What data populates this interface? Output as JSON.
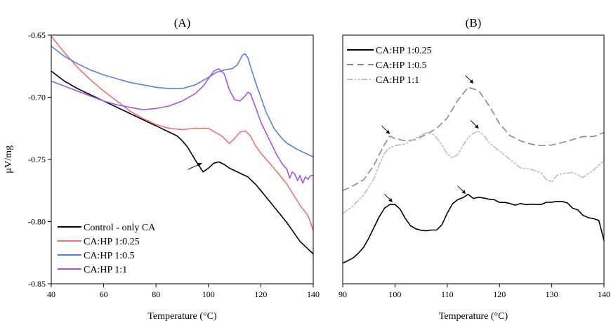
{
  "chart_data": [
    {
      "panel_label": "(A)",
      "type": "line",
      "xlabel": "Temperature (°C)",
      "ylabel": "µV/mg",
      "xlim": [
        40,
        140
      ],
      "ylim": [
        -0.85,
        -0.65
      ],
      "x_ticks": [
        "40",
        "60",
        "80",
        "100",
        "120",
        "140"
      ],
      "y_ticks": [
        "-0.65",
        "-0.70",
        "-0.75",
        "-0.80",
        "-0.85"
      ],
      "legend_position": "bottom-left",
      "series": [
        {
          "name": "Control - only CA",
          "color": "#000000",
          "x": [
            40,
            45,
            50,
            55,
            60,
            65,
            70,
            75,
            80,
            85,
            88,
            90,
            92,
            94,
            96,
            98,
            100,
            102,
            104,
            106,
            108,
            110,
            112,
            115,
            118,
            120,
            125,
            130,
            135,
            138,
            140
          ],
          "y": [
            -0.679,
            -0.687,
            -0.693,
            -0.698,
            -0.703,
            -0.708,
            -0.713,
            -0.718,
            -0.723,
            -0.728,
            -0.731,
            -0.735,
            -0.74,
            -0.747,
            -0.754,
            -0.76,
            -0.757,
            -0.753,
            -0.752,
            -0.754,
            -0.757,
            -0.759,
            -0.761,
            -0.764,
            -0.77,
            -0.775,
            -0.788,
            -0.801,
            -0.816,
            -0.822,
            -0.826
          ]
        },
        {
          "name": "CA:HP 1:0.25",
          "color": "#f07171",
          "x": [
            40,
            45,
            50,
            55,
            60,
            65,
            70,
            75,
            80,
            85,
            90,
            95,
            100,
            105,
            108,
            110,
            112,
            114,
            116,
            118,
            120,
            125,
            130,
            135,
            138,
            140
          ],
          "y": [
            -0.651,
            -0.664,
            -0.676,
            -0.686,
            -0.695,
            -0.703,
            -0.711,
            -0.717,
            -0.722,
            -0.725,
            -0.726,
            -0.725,
            -0.725,
            -0.731,
            -0.737,
            -0.733,
            -0.728,
            -0.727,
            -0.731,
            -0.739,
            -0.745,
            -0.757,
            -0.77,
            -0.787,
            -0.795,
            -0.807
          ]
        },
        {
          "name": "CA:HP 1:0.5",
          "color": "#5b7fe8",
          "x": [
            40,
            45,
            50,
            55,
            60,
            65,
            70,
            75,
            80,
            85,
            90,
            95,
            100,
            103,
            106,
            109,
            111,
            113,
            114,
            115,
            116,
            118,
            120,
            122,
            125,
            128,
            130,
            134,
            138,
            140
          ],
          "y": [
            -0.659,
            -0.667,
            -0.673,
            -0.678,
            -0.682,
            -0.685,
            -0.688,
            -0.69,
            -0.692,
            -0.693,
            -0.693,
            -0.69,
            -0.684,
            -0.68,
            -0.678,
            -0.677,
            -0.674,
            -0.666,
            -0.665,
            -0.668,
            -0.675,
            -0.688,
            -0.7,
            -0.712,
            -0.725,
            -0.733,
            -0.737,
            -0.742,
            -0.746,
            -0.748
          ]
        },
        {
          "name": "CA:HP 1:1",
          "color": "#a855e0",
          "x": [
            40,
            45,
            50,
            55,
            60,
            65,
            70,
            75,
            80,
            85,
            90,
            95,
            98,
            100,
            102,
            104,
            106,
            108,
            110,
            112,
            114,
            115,
            116,
            118,
            120,
            123,
            126,
            128,
            130,
            131,
            132,
            133,
            134,
            135,
            136,
            137,
            138,
            139,
            140
          ],
          "y": [
            -0.687,
            -0.691,
            -0.695,
            -0.699,
            -0.703,
            -0.706,
            -0.708,
            -0.71,
            -0.709,
            -0.707,
            -0.703,
            -0.697,
            -0.691,
            -0.685,
            -0.679,
            -0.677,
            -0.681,
            -0.694,
            -0.702,
            -0.703,
            -0.699,
            -0.696,
            -0.697,
            -0.708,
            -0.72,
            -0.733,
            -0.746,
            -0.753,
            -0.758,
            -0.765,
            -0.76,
            -0.762,
            -0.767,
            -0.763,
            -0.769,
            -0.764,
            -0.766,
            -0.763,
            -0.763
          ]
        }
      ],
      "annotations": [
        {
          "type": "arrow",
          "target_x": 97.5,
          "target_y": -0.753
        }
      ]
    },
    {
      "panel_label": "(B)",
      "type": "line",
      "xlabel": "Temperature (°C)",
      "xlim": [
        90,
        140
      ],
      "x_ticks": [
        "90",
        "100",
        "110",
        "120",
        "130",
        "140"
      ],
      "ylim": [
        0,
        1
      ],
      "y_axis_labelled": false,
      "legend_position": "top-left",
      "series": [
        {
          "name": "CA:HP 1:0.25",
          "color": "#000000",
          "dash": "solid",
          "x": [
            90,
            91,
            92,
            93,
            94,
            95,
            96,
            97,
            98,
            99,
            100,
            101,
            102,
            103,
            104,
            105,
            106,
            107,
            108,
            109,
            110,
            111,
            112,
            113,
            114,
            115,
            116,
            117,
            118,
            119,
            120,
            121,
            122,
            123,
            124,
            125,
            126,
            127,
            128,
            129,
            130,
            131,
            132,
            133,
            134,
            135,
            136,
            137,
            138,
            139,
            140
          ],
          "y": [
            0.083,
            0.093,
            0.104,
            0.123,
            0.147,
            0.184,
            0.227,
            0.27,
            0.304,
            0.319,
            0.319,
            0.3,
            0.262,
            0.233,
            0.221,
            0.215,
            0.213,
            0.216,
            0.216,
            0.238,
            0.284,
            0.321,
            0.338,
            0.346,
            0.36,
            0.343,
            0.348,
            0.345,
            0.34,
            0.338,
            0.327,
            0.327,
            0.323,
            0.316,
            0.323,
            0.318,
            0.32,
            0.319,
            0.319,
            0.328,
            0.328,
            0.331,
            0.331,
            0.325,
            0.304,
            0.297,
            0.275,
            0.266,
            0.262,
            0.255,
            0.175
          ]
        },
        {
          "name": "CA:HP 1:0.5",
          "color": "#8a8a8a",
          "dash": "long-dash",
          "x": [
            90,
            92,
            94,
            96,
            98,
            99,
            100,
            102,
            104,
            106,
            108,
            110,
            112,
            114,
            116,
            118,
            120,
            122,
            124,
            126,
            128,
            130,
            132,
            134,
            136,
            138,
            140
          ],
          "y": [
            0.375,
            0.394,
            0.418,
            0.477,
            0.561,
            0.594,
            0.584,
            0.575,
            0.58,
            0.601,
            0.625,
            0.667,
            0.737,
            0.79,
            0.777,
            0.717,
            0.644,
            0.596,
            0.575,
            0.562,
            0.555,
            0.558,
            0.568,
            0.58,
            0.592,
            0.592,
            0.608
          ]
        },
        {
          "name": "CA:HP 1:1",
          "color": "#bdbdbd",
          "dash": "dash-dot-dot",
          "x": [
            90,
            92,
            94,
            96,
            97,
            98,
            99,
            100,
            102,
            104,
            106,
            107,
            108,
            109,
            110,
            111,
            112,
            113,
            114,
            115,
            116,
            117,
            118,
            120,
            122,
            124,
            126,
            128,
            129,
            130,
            131,
            132,
            133,
            134,
            135,
            136,
            137,
            138,
            140
          ],
          "y": [
            0.282,
            0.314,
            0.357,
            0.424,
            0.48,
            0.526,
            0.547,
            0.555,
            0.563,
            0.586,
            0.608,
            0.605,
            0.587,
            0.557,
            0.522,
            0.506,
            0.52,
            0.555,
            0.588,
            0.605,
            0.614,
            0.598,
            0.568,
            0.534,
            0.5,
            0.466,
            0.461,
            0.446,
            0.418,
            0.41,
            0.436,
            0.442,
            0.445,
            0.448,
            0.437,
            0.427,
            0.443,
            0.456,
            0.497
          ]
        }
      ],
      "annotations": [
        {
          "type": "arrow",
          "target_x": 99,
          "target_y": 0.603
        },
        {
          "type": "arrow",
          "target_x": 115,
          "target_y": 0.806
        },
        {
          "type": "arrow",
          "target_x": 116,
          "target_y": 0.625
        },
        {
          "type": "arrow",
          "target_x": 99.5,
          "target_y": 0.329
        },
        {
          "type": "arrow",
          "target_x": 113.5,
          "target_y": 0.362
        }
      ]
    }
  ]
}
